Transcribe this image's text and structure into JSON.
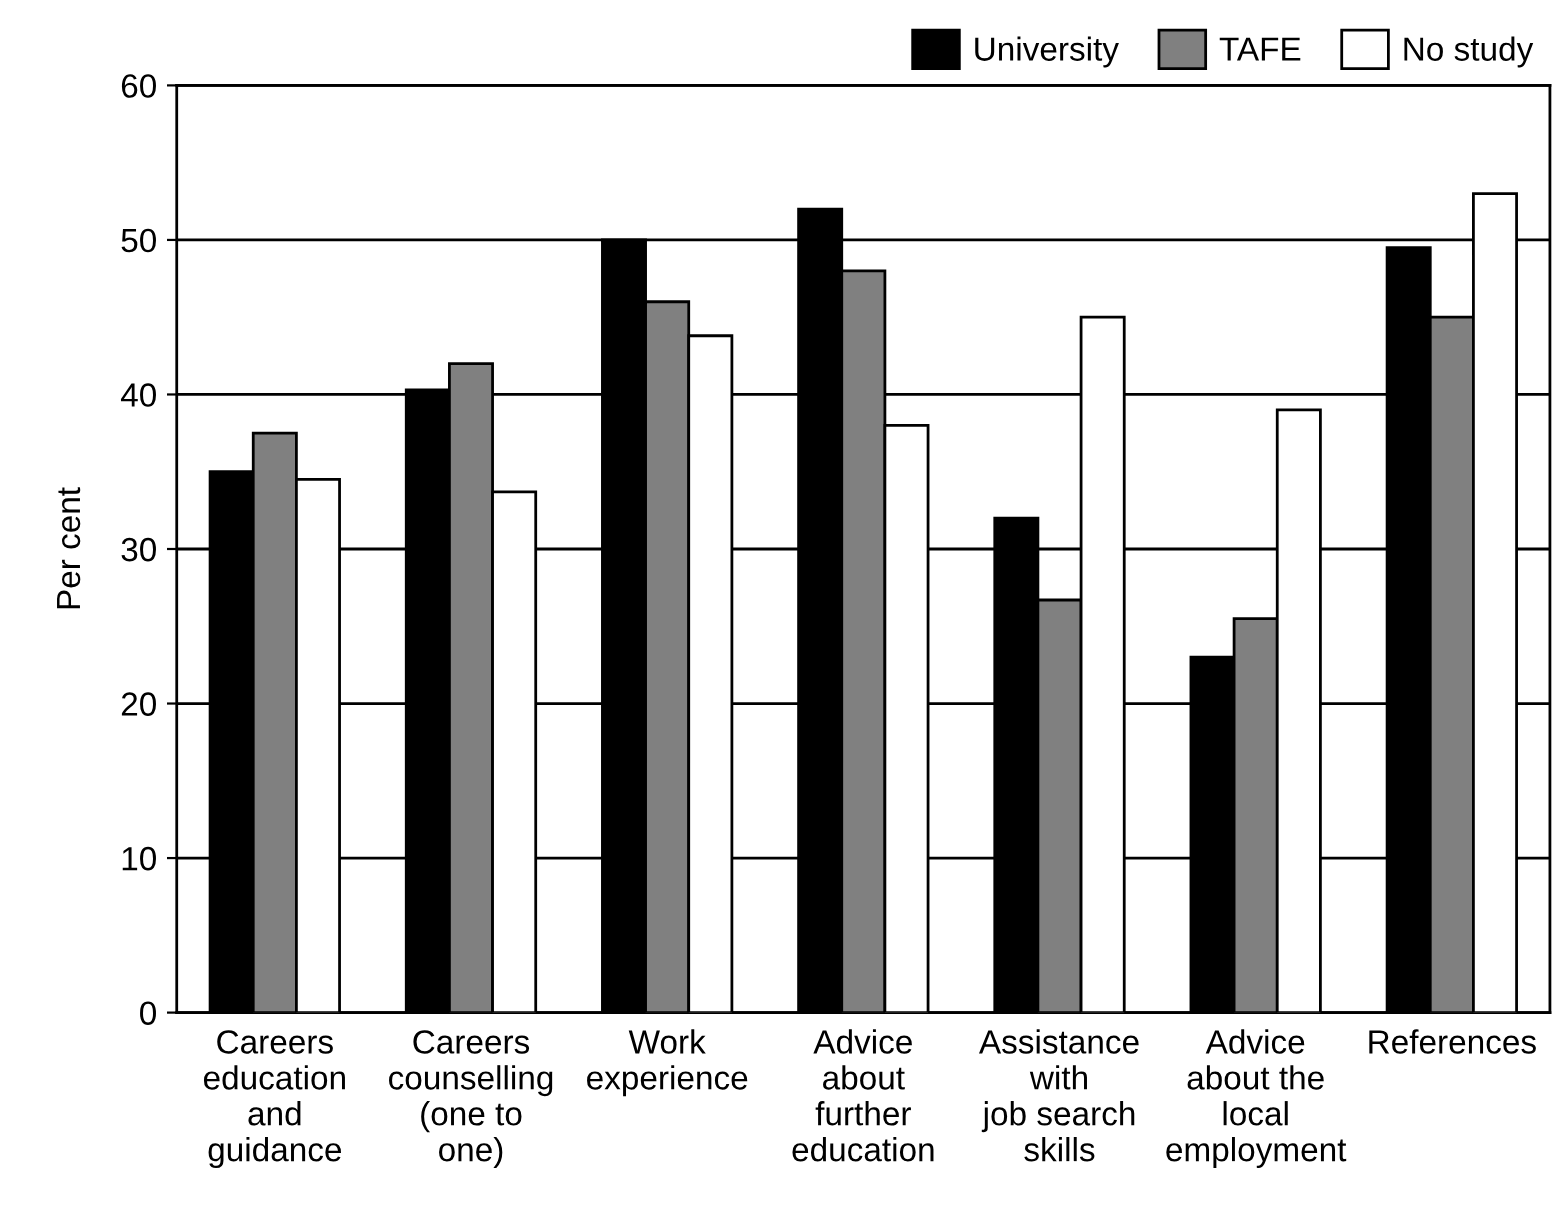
{
  "chart_data": {
    "type": "bar",
    "ylabel": "Per cent",
    "categories": [
      "Careers\neducation\nand\nguidance",
      "Careers\ncounselling\n(one to\none)",
      "Work\nexperience",
      "Advice\nabout\nfurther\neducation",
      "Assistance\nwith\njob search\nskills",
      "Advice\nabout the\nlocal\nemployment",
      "References"
    ],
    "series": [
      {
        "name": "University",
        "color": "#000000",
        "values": [
          35,
          40.3,
          50,
          52,
          32,
          23,
          49.5
        ]
      },
      {
        "name": "TAFE",
        "color": "#808080",
        "values": [
          37.5,
          42,
          46,
          48,
          26.7,
          25.5,
          45
        ]
      },
      {
        "name": "No study",
        "color": "#ffffff",
        "values": [
          34.5,
          33.7,
          43.8,
          38,
          45,
          39,
          53
        ]
      }
    ],
    "ylim": [
      0,
      60
    ],
    "yticks": [
      0,
      10,
      20,
      30,
      40,
      50,
      60
    ],
    "grid": "y",
    "legend": "top right"
  }
}
